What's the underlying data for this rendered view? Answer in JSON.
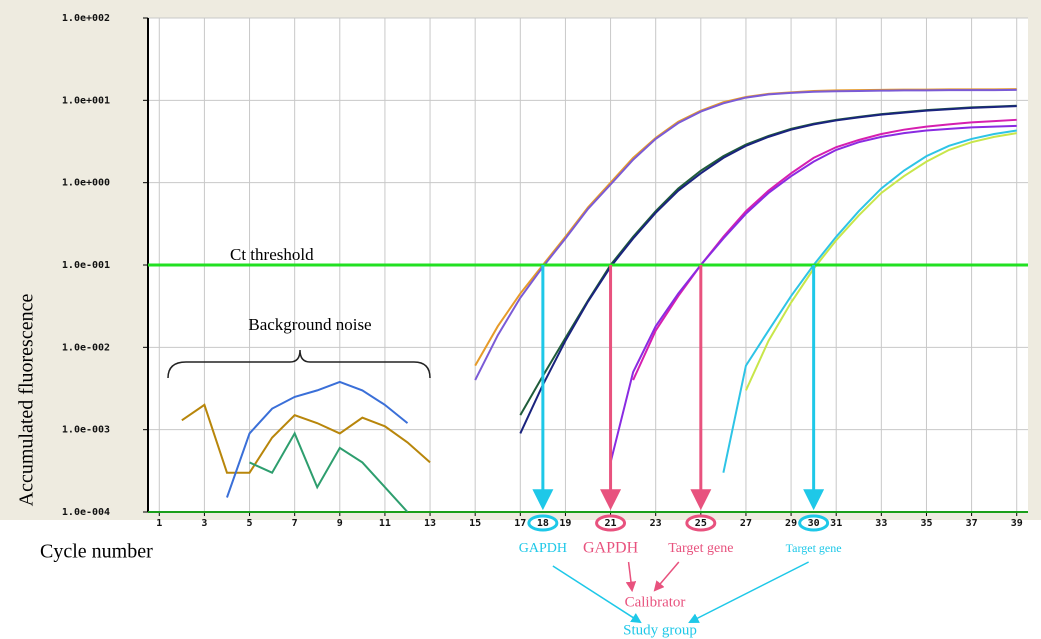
{
  "chart_data": {
    "type": "line",
    "xlabel": "Cycle number",
    "ylabel": "Accumulated fluorescence",
    "log_y": true,
    "grid": true,
    "xlim": [
      0.5,
      39.5
    ],
    "ylim": [
      0.0001,
      100
    ],
    "xticks": [
      1,
      3,
      5,
      7,
      9,
      11,
      13,
      15,
      17,
      19,
      21,
      23,
      25,
      27,
      29,
      31,
      33,
      35,
      37,
      39
    ],
    "yticks": [
      {
        "value": 0.0001,
        "label": "1.0e-004"
      },
      {
        "value": 0.001,
        "label": "1.0e-003"
      },
      {
        "value": 0.01,
        "label": "1.0e-002"
      },
      {
        "value": 0.1,
        "label": "1.0e-001"
      },
      {
        "value": 1,
        "label": "1.0e+000"
      },
      {
        "value": 10,
        "label": "1.0e+001"
      },
      {
        "value": 100,
        "label": "1.0e+002"
      }
    ],
    "x": [
      1,
      2,
      3,
      4,
      5,
      6,
      7,
      8,
      9,
      10,
      11,
      12,
      13,
      14,
      15,
      16,
      17,
      18,
      19,
      20,
      21,
      22,
      23,
      24,
      25,
      26,
      27,
      28,
      29,
      30,
      31,
      32,
      33,
      34,
      35,
      36,
      37,
      38,
      39
    ],
    "series": [
      {
        "color": "#e69b2a",
        "values": [
          null,
          null,
          null,
          null,
          null,
          null,
          null,
          null,
          null,
          null,
          null,
          null,
          null,
          null,
          0.006,
          0.018,
          0.045,
          0.1,
          0.22,
          0.5,
          1.0,
          2.0,
          3.5,
          5.5,
          7.5,
          9.5,
          11,
          12,
          12.5,
          13,
          13.2,
          13.3,
          13.4,
          13.5,
          13.5,
          13.6,
          13.6,
          13.6,
          13.7
        ]
      },
      {
        "color": "#7b5bd6",
        "values": [
          null,
          null,
          null,
          null,
          null,
          null,
          null,
          null,
          null,
          null,
          null,
          null,
          null,
          null,
          0.004,
          0.014,
          0.04,
          0.095,
          0.21,
          0.48,
          0.95,
          1.9,
          3.4,
          5.3,
          7.3,
          9.2,
          10.8,
          11.8,
          12.3,
          12.7,
          12.9,
          13,
          13.1,
          13.2,
          13.2,
          13.3,
          13.3,
          13.3,
          13.4
        ]
      },
      {
        "color": "#1f5c3a",
        "values": [
          null,
          null,
          null,
          null,
          null,
          null,
          null,
          null,
          null,
          null,
          null,
          null,
          null,
          null,
          null,
          null,
          0.0015,
          0.0045,
          0.013,
          0.037,
          0.1,
          0.22,
          0.45,
          0.85,
          1.4,
          2.1,
          2.9,
          3.7,
          4.5,
          5.2,
          5.8,
          6.3,
          6.8,
          7.2,
          7.6,
          7.9,
          8.2,
          8.4,
          8.6
        ]
      },
      {
        "color": "#1a237e",
        "values": [
          null,
          null,
          null,
          null,
          null,
          null,
          null,
          null,
          null,
          null,
          null,
          null,
          null,
          null,
          null,
          null,
          0.0009,
          0.0035,
          0.012,
          0.036,
          0.095,
          0.21,
          0.43,
          0.8,
          1.3,
          2,
          2.8,
          3.6,
          4.4,
          5.1,
          5.7,
          6.2,
          6.7,
          7.1,
          7.5,
          7.8,
          8.1,
          8.3,
          8.5
        ]
      },
      {
        "color": "#d61fb0",
        "values": [
          null,
          null,
          null,
          null,
          null,
          null,
          null,
          null,
          null,
          null,
          null,
          null,
          null,
          null,
          null,
          null,
          null,
          null,
          null,
          null,
          null,
          0.004,
          0.016,
          0.042,
          0.1,
          0.22,
          0.45,
          0.8,
          1.3,
          2,
          2.7,
          3.3,
          3.9,
          4.4,
          4.8,
          5.1,
          5.4,
          5.6,
          5.8
        ]
      },
      {
        "color": "#8a2be2",
        "values": [
          null,
          null,
          null,
          null,
          null,
          null,
          null,
          null,
          null,
          null,
          null,
          null,
          null,
          null,
          null,
          null,
          null,
          null,
          null,
          null,
          0.0004,
          0.005,
          0.018,
          0.045,
          0.1,
          0.21,
          0.42,
          0.75,
          1.2,
          1.8,
          2.5,
          3.1,
          3.6,
          4,
          4.3,
          4.5,
          4.7,
          4.8,
          4.9
        ]
      },
      {
        "color": "#2ec4e6",
        "values": [
          null,
          null,
          null,
          null,
          null,
          null,
          null,
          null,
          null,
          null,
          null,
          null,
          null,
          null,
          null,
          null,
          null,
          null,
          null,
          null,
          null,
          null,
          null,
          null,
          null,
          0.0003,
          0.006,
          0.016,
          0.042,
          0.1,
          0.22,
          0.45,
          0.85,
          1.4,
          2.1,
          2.8,
          3.4,
          3.9,
          4.3
        ]
      },
      {
        "color": "#c8e64a",
        "values": [
          null,
          null,
          null,
          null,
          null,
          null,
          null,
          null,
          null,
          null,
          null,
          null,
          null,
          null,
          null,
          null,
          null,
          null,
          null,
          null,
          null,
          null,
          null,
          null,
          null,
          null,
          0.003,
          0.012,
          0.035,
          0.09,
          0.2,
          0.4,
          0.75,
          1.2,
          1.8,
          2.5,
          3.1,
          3.6,
          4
        ]
      },
      {
        "color": "#b8860b",
        "values": [
          null,
          0.0013,
          0.002,
          0.0003,
          0.0003,
          0.0008,
          0.0015,
          0.0012,
          0.0009,
          0.0014,
          0.0011,
          0.0007,
          0.0004,
          null,
          null,
          null,
          null,
          null,
          null,
          null,
          null,
          null,
          null,
          null,
          null,
          null,
          null,
          null,
          null,
          null,
          null,
          null,
          null,
          null,
          null,
          null,
          null,
          null,
          null
        ]
      },
      {
        "color": "#3a6fd8",
        "values": [
          null,
          null,
          null,
          0.00015,
          0.0009,
          0.0018,
          0.0025,
          0.003,
          0.0038,
          0.003,
          0.002,
          0.0012,
          null,
          null,
          null,
          null,
          null,
          null,
          null,
          null,
          null,
          null,
          null,
          null,
          null,
          null,
          null,
          null,
          null,
          null,
          null,
          null,
          null,
          null,
          null,
          null,
          null,
          null,
          null
        ]
      },
      {
        "color": "#2e9e6e",
        "values": [
          null,
          null,
          null,
          null,
          0.0004,
          0.0003,
          0.0009,
          0.0002,
          0.0006,
          0.0004,
          0.0002,
          0.0001,
          null,
          null,
          null,
          null,
          null,
          null,
          null,
          null,
          null,
          null,
          null,
          null,
          null,
          null,
          null,
          null,
          null,
          null,
          null,
          null,
          null,
          null,
          null,
          null,
          null,
          null,
          null
        ]
      }
    ],
    "threshold": {
      "value": 0.1,
      "label": "Ct threshold",
      "color": "#22e022"
    },
    "noise_label": "Background noise",
    "ct_markers": [
      {
        "value": 18,
        "color": "#1ec8e8",
        "label": "GAPDH"
      },
      {
        "value": 21,
        "color": "#e8527e",
        "label": "GAPDH"
      },
      {
        "value": 25,
        "color": "#e8527e",
        "label": "Target gene"
      },
      {
        "value": 30,
        "color": "#1ec8e8",
        "label": "Target gene"
      }
    ],
    "calibrator": "Calibrator",
    "study_group": "Study group"
  }
}
